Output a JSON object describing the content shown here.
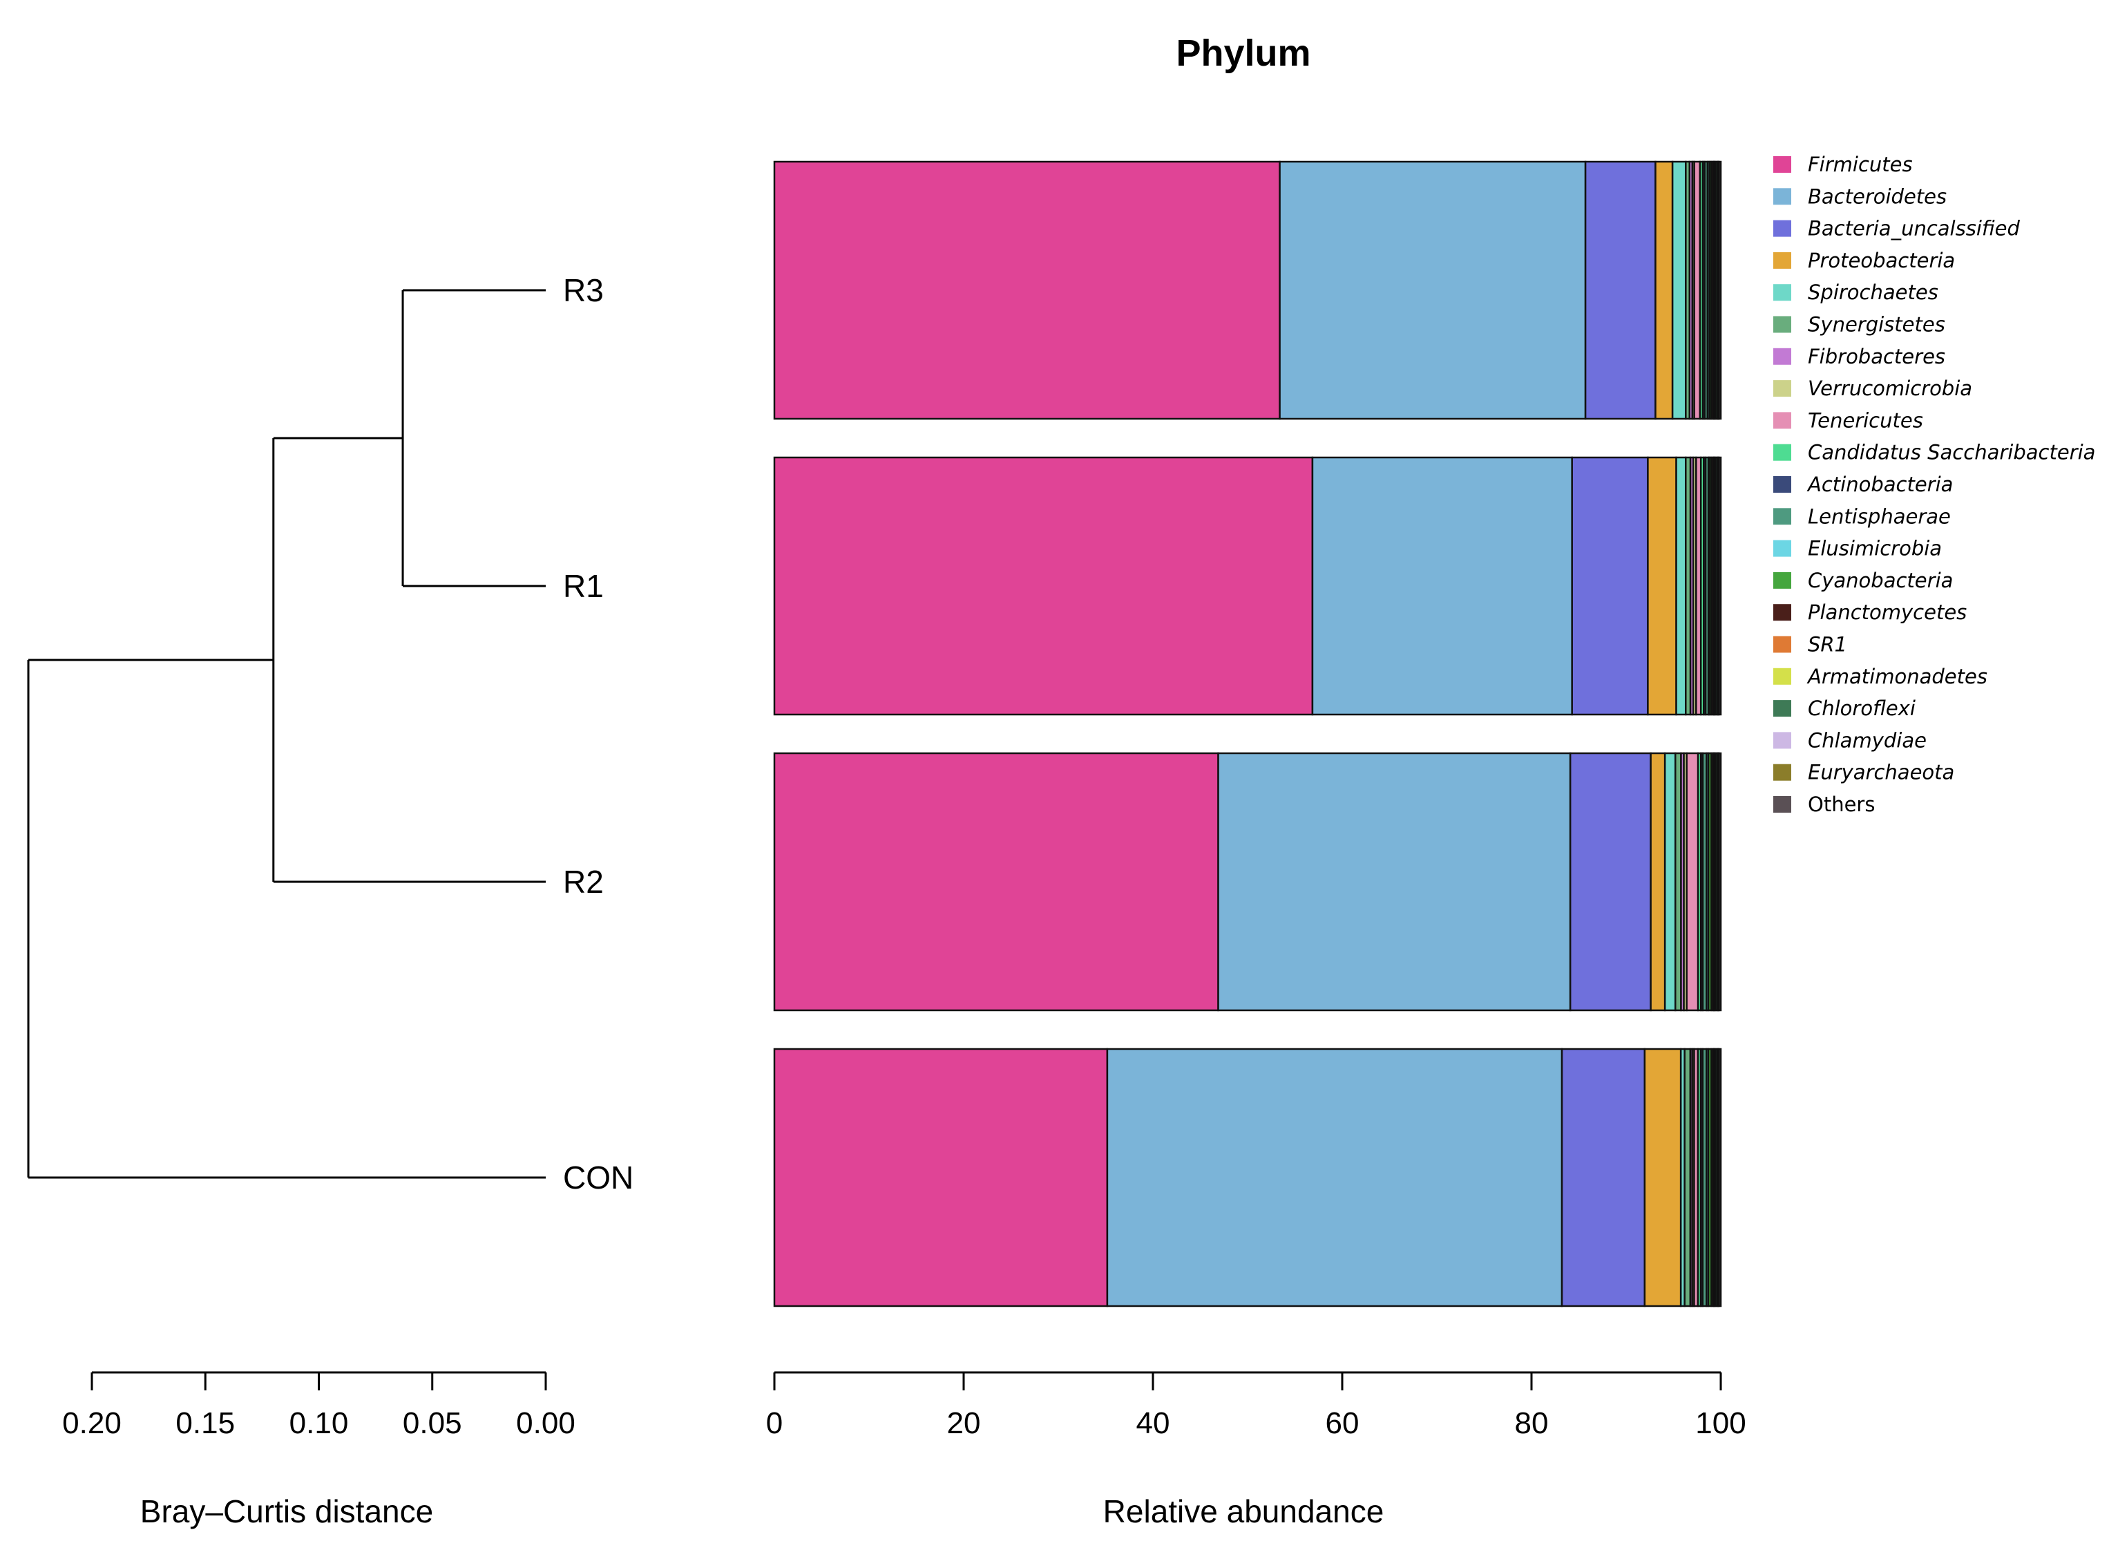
{
  "chart_data": [
    {
      "type": "dendrogram",
      "xlabel": "Bray–Curtis distance",
      "xlim": [
        0.2,
        0.0
      ],
      "xticks": [
        "0.20",
        "0.15",
        "0.10",
        "0.05",
        "0.00"
      ],
      "tick_values": [
        0.2,
        0.15,
        0.1,
        0.05,
        0.0
      ],
      "leaves": [
        "R3",
        "R1",
        "R2",
        "CON"
      ],
      "merges": [
        {
          "children": [
            "R3",
            "R1"
          ],
          "height": 0.063
        },
        {
          "children": [
            "R3+R1",
            "R2"
          ],
          "height": 0.12
        },
        {
          "children": [
            "R3+R1+R2",
            "CON"
          ],
          "height": 0.228
        }
      ]
    },
    {
      "type": "bar",
      "orientation": "horizontal",
      "stacked": true,
      "title": "Phylum",
      "xlabel": "Relative abundance",
      "xlim": [
        0,
        100
      ],
      "xticks": [
        "0",
        "20",
        "40",
        "60",
        "80",
        "100"
      ],
      "tick_values": [
        0,
        20,
        40,
        60,
        80,
        100
      ],
      "categories": [
        "R3",
        "R1",
        "R2",
        "CON"
      ],
      "series": [
        {
          "name": "Firmicutes",
          "color": "#e04496",
          "values": [
            53.4,
            56.8,
            46.9,
            35.0
          ]
        },
        {
          "name": "Bacteroidetes",
          "color": "#7bb4d8",
          "values": [
            32.3,
            27.4,
            37.2,
            47.8
          ]
        },
        {
          "name": "Bacteria_uncalssified",
          "color": "#6f70dc",
          "values": [
            7.4,
            8.0,
            8.5,
            8.7
          ]
        },
        {
          "name": "Proteobacteria",
          "color": "#e3a636",
          "values": [
            1.8,
            3.0,
            1.5,
            3.8
          ]
        },
        {
          "name": "Spirochaetes",
          "color": "#6ed8c8",
          "values": [
            1.4,
            1.0,
            1.1,
            0.4
          ]
        },
        {
          "name": "Synergistetes",
          "color": "#69ad7d",
          "values": [
            0.4,
            0.5,
            0.6,
            0.6
          ]
        },
        {
          "name": "Fibrobacteres",
          "color": "#c27ad4",
          "values": [
            0.3,
            0.3,
            0.3,
            0.2
          ]
        },
        {
          "name": "Verrucomicrobia",
          "color": "#ccd28a",
          "values": [
            0.2,
            0.3,
            0.3,
            0.2
          ]
        },
        {
          "name": "Tenericutes",
          "color": "#e58fb4",
          "values": [
            0.6,
            0.5,
            1.2,
            0.4
          ]
        },
        {
          "name": "Candidatus Saccharibacteria",
          "color": "#4edc92",
          "values": [
            0.3,
            0.3,
            0.3,
            0.3
          ]
        },
        {
          "name": "Actinobacteria",
          "color": "#3a4a7a",
          "values": [
            0.2,
            0.2,
            0.2,
            0.2
          ]
        },
        {
          "name": "Lentisphaerae",
          "color": "#4e9a80",
          "values": [
            0.3,
            0.3,
            0.4,
            0.4
          ]
        },
        {
          "name": "Elusimicrobia",
          "color": "#6cd6e4",
          "values": [
            0.2,
            0.1,
            0.2,
            0.2
          ]
        },
        {
          "name": "Cyanobacteria",
          "color": "#45a63e",
          "values": [
            0.2,
            0.2,
            0.3,
            0.3
          ]
        },
        {
          "name": "Planctomycetes",
          "color": "#4a1f1a",
          "values": [
            0.2,
            0.2,
            0.2,
            0.2
          ]
        },
        {
          "name": "SR1",
          "color": "#df7a34",
          "values": [
            0.1,
            0.1,
            0.1,
            0.1
          ]
        },
        {
          "name": "Armatimonadetes",
          "color": "#d4e04a",
          "values": [
            0.1,
            0.1,
            0.1,
            0.1
          ]
        },
        {
          "name": "Chloroflexi",
          "color": "#3e7a56",
          "values": [
            0.2,
            0.2,
            0.2,
            0.2
          ]
        },
        {
          "name": "Chlamydiae",
          "color": "#cdb8e4",
          "values": [
            0.1,
            0.1,
            0.1,
            0.1
          ]
        },
        {
          "name": "Euryarchaeota",
          "color": "#8b7d2a",
          "values": [
            0.1,
            0.1,
            0.1,
            0.1
          ]
        },
        {
          "name": "Others",
          "color": "#5a5055",
          "values": [
            0.2,
            0.2,
            0.2,
            0.2
          ]
        }
      ],
      "legend_position": "right",
      "legend_label_style": "italic except Others"
    }
  ]
}
